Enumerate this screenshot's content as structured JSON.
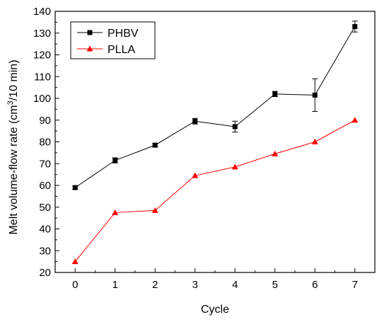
{
  "chart_data": {
    "type": "line",
    "xlabel": "Cycle",
    "ylabel_prefix": "Melt volume-flow rate (cm",
    "ylabel_sup": "3",
    "ylabel_suffix": "/10 min)",
    "xlim": [
      -0.5,
      7.5
    ],
    "ylim": [
      20,
      140
    ],
    "x_ticks": [
      0,
      1,
      2,
      3,
      4,
      5,
      6,
      7
    ],
    "y_ticks": [
      20,
      30,
      40,
      50,
      60,
      70,
      80,
      90,
      100,
      110,
      120,
      130,
      140
    ],
    "grid": false,
    "legend_position": "top-left",
    "x": [
      0,
      1,
      2,
      3,
      4,
      5,
      6,
      7
    ],
    "series": [
      {
        "name": "PHBV",
        "color": "#000000",
        "marker": "square",
        "values": [
          59,
          71.5,
          78.5,
          89.5,
          87,
          102,
          101.5,
          133
        ],
        "errors": [
          0.8,
          1.2,
          0.8,
          1.3,
          2.5,
          1.2,
          7.5,
          2.5
        ]
      },
      {
        "name": "PLLA",
        "color": "#ff0000",
        "marker": "triangle",
        "values": [
          25,
          47.5,
          48.5,
          64.5,
          68.5,
          74.5,
          80,
          90
        ],
        "errors": [
          0,
          0,
          0,
          0,
          0,
          0,
          0,
          0
        ]
      }
    ]
  }
}
